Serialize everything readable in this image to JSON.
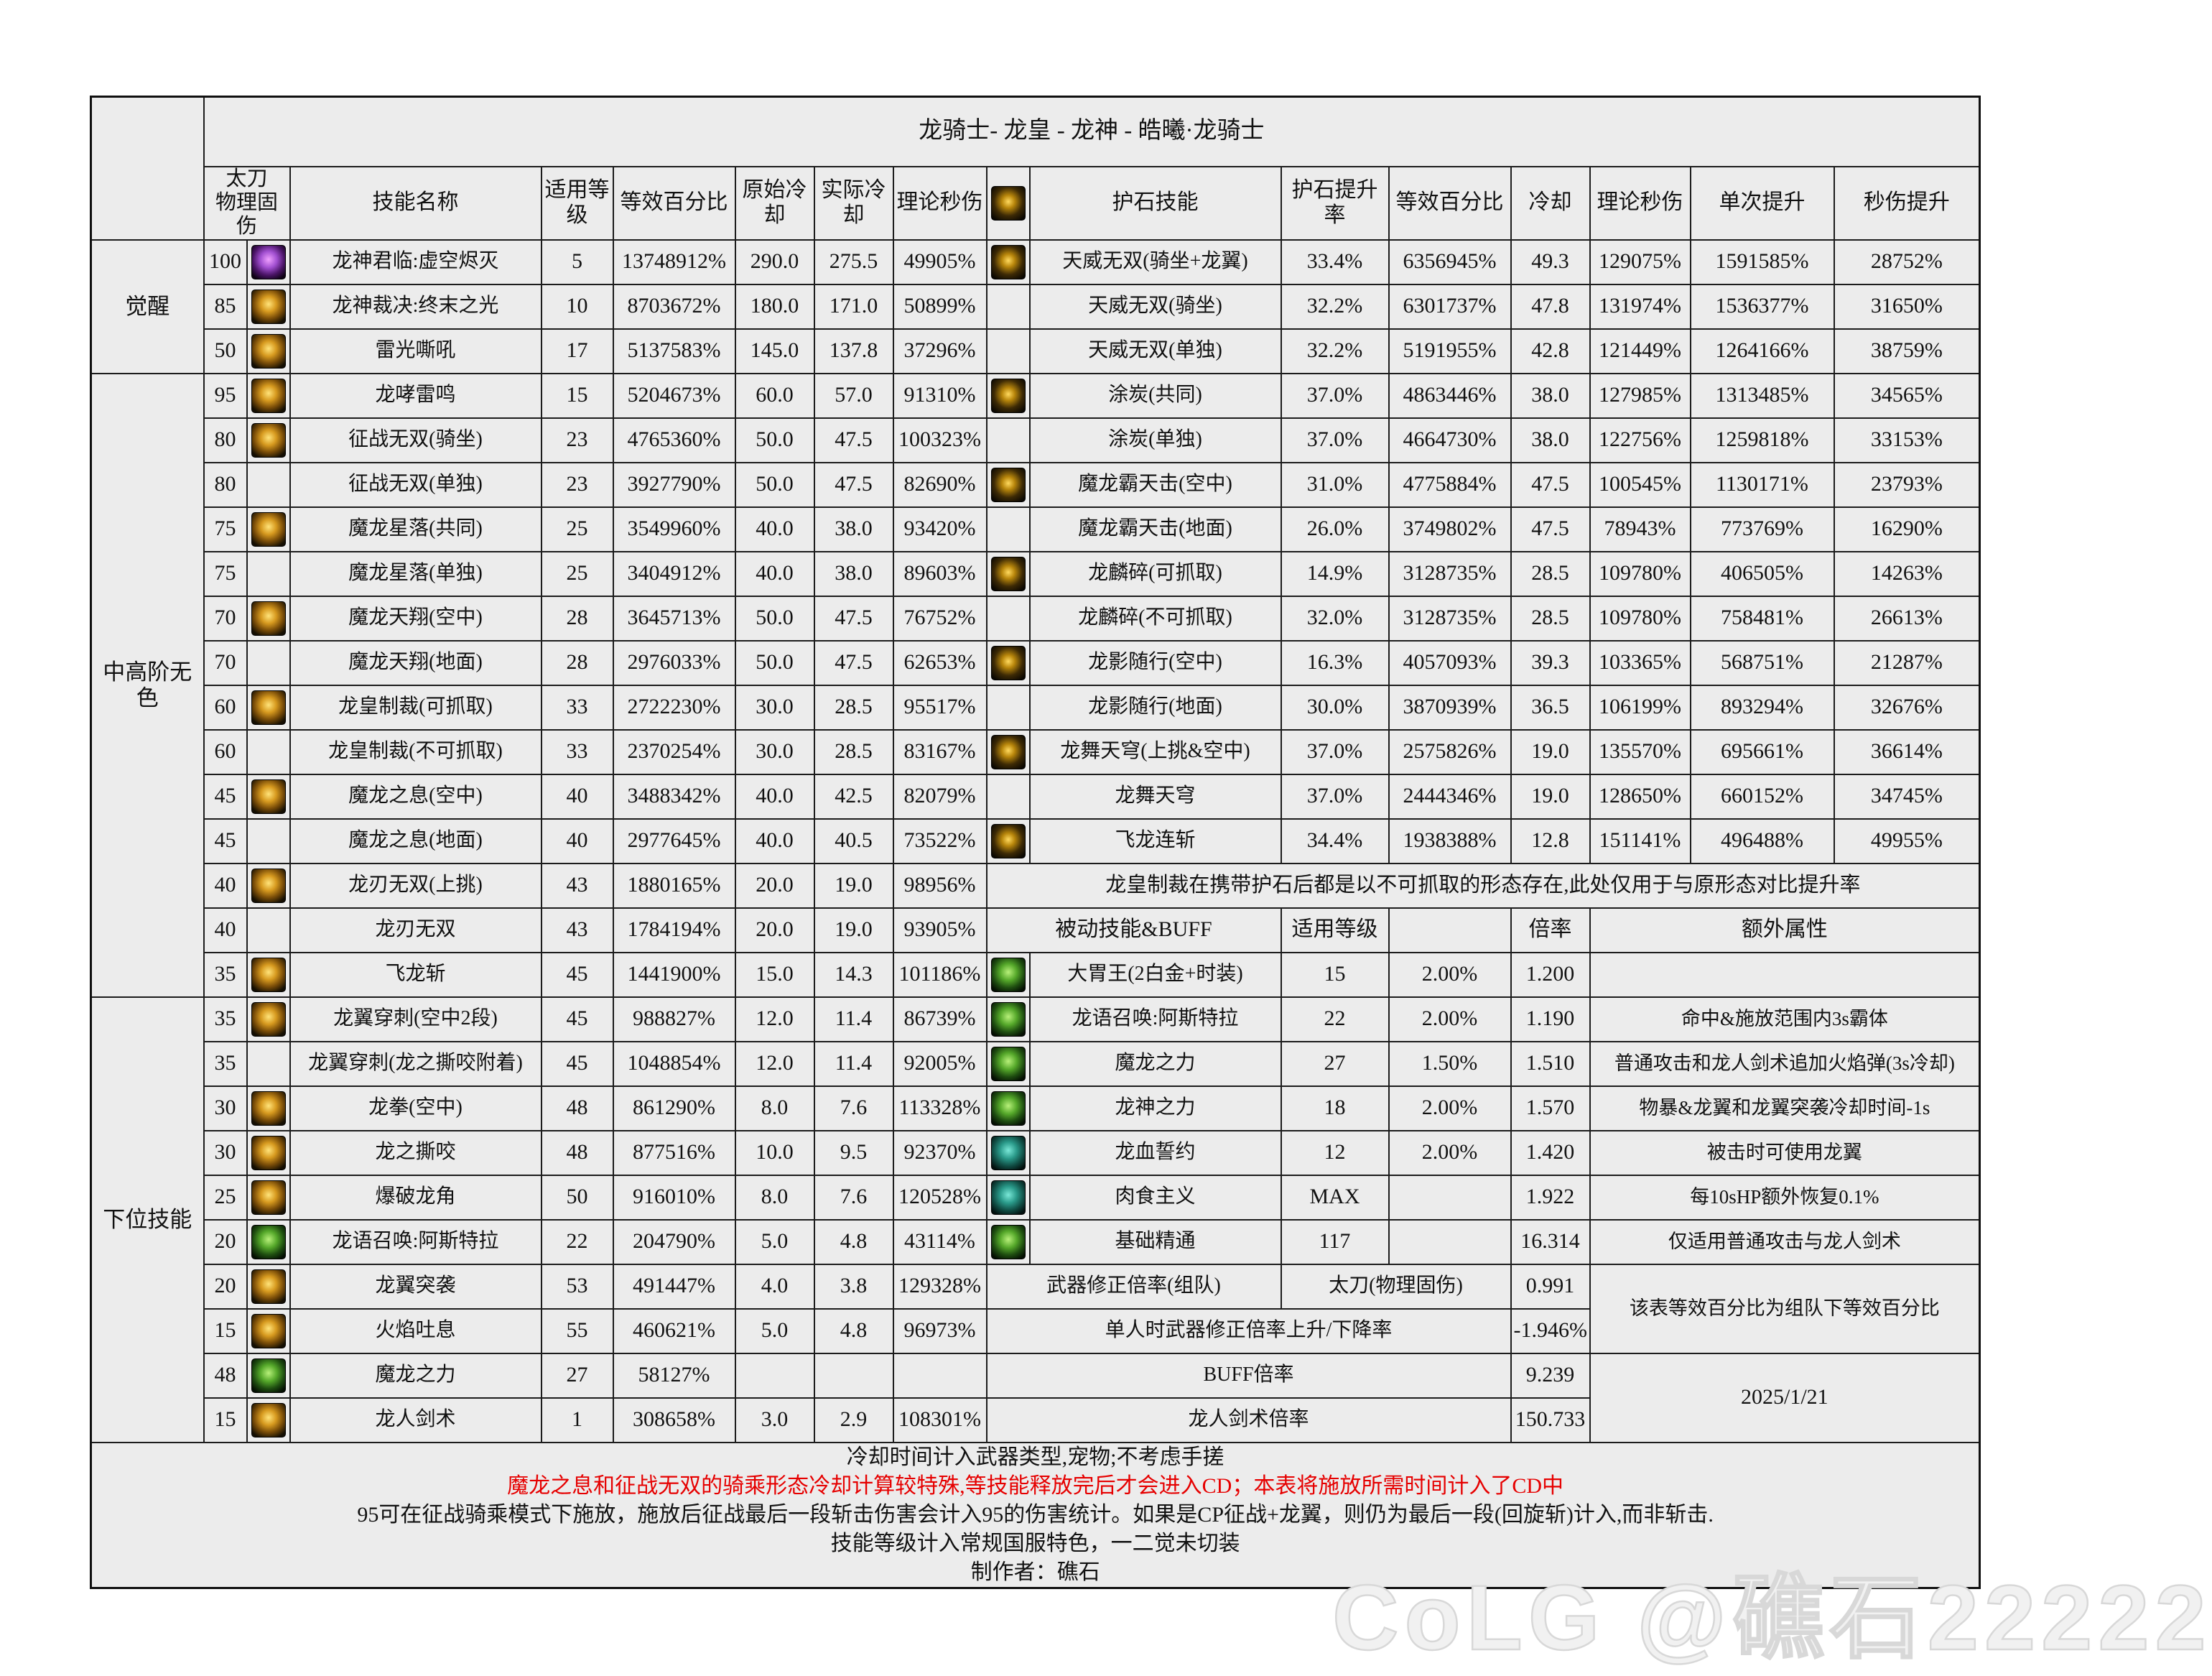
{
  "title": "龙骑士- 龙皇 - 龙神 - 皓曦·龙骑士",
  "colors": {
    "table_bg": "#ececec",
    "red_note": "#e60000",
    "watermark": "#ebebeb",
    "border": "#1c1c1c"
  },
  "corner": {
    "weapon_header": "太刀\n物理固伤"
  },
  "columns": {
    "skill_name": "技能名称",
    "use_level": "适用等级",
    "eq_pct": "等效百分比",
    "cd_orig": "原始冷却",
    "cd_real": "实际冷却",
    "dps": "理论秒伤",
    "stone_icon": "stone-rune-icon",
    "stone_skill": "护石技能",
    "stone_rate": "护石提升率",
    "eq_pct2": "等效百分比",
    "cd2": "冷却",
    "dps2": "理论秒伤",
    "single_boost": "单次提升",
    "dps_boost": "秒伤提升"
  },
  "sections": [
    {
      "label": "觉醒",
      "span": 3
    },
    {
      "label": "中高阶无色",
      "span": 14
    },
    {
      "label": "下位技能",
      "span": 10
    }
  ],
  "rows": [
    {
      "lv": "100",
      "icon": "purple",
      "name": "龙神君临:虚空烬灭",
      "use": "5",
      "eq": "13748912%",
      "cd": "290.0",
      "cdr": "275.5",
      "dps": "49905%"
    },
    {
      "lv": "85",
      "icon": "gold",
      "name": "龙神裁决:终末之光",
      "use": "10",
      "eq": "8703672%",
      "cd": "180.0",
      "cdr": "171.0",
      "dps": "50899%"
    },
    {
      "lv": "50",
      "icon": "gold",
      "name": "雷光嘶吼",
      "use": "17",
      "eq": "5137583%",
      "cd": "145.0",
      "cdr": "137.8",
      "dps": "37296%"
    },
    {
      "lv": "95",
      "icon": "gold",
      "name": "龙哮雷鸣",
      "use": "15",
      "eq": "5204673%",
      "cd": "60.0",
      "cdr": "57.0",
      "dps": "91310%"
    },
    {
      "lv": "80",
      "icon": "gold",
      "name": "征战无双(骑坐)",
      "use": "23",
      "eq": "4765360%",
      "cd": "50.0",
      "cdr": "47.5",
      "dps": "100323%"
    },
    {
      "lv": "80",
      "icon": null,
      "name": "征战无双(单独)",
      "use": "23",
      "eq": "3927790%",
      "cd": "50.0",
      "cdr": "47.5",
      "dps": "82690%"
    },
    {
      "lv": "75",
      "icon": "gold",
      "name": "魔龙星落(共同)",
      "use": "25",
      "eq": "3549960%",
      "cd": "40.0",
      "cdr": "38.0",
      "dps": "93420%"
    },
    {
      "lv": "75",
      "icon": null,
      "name": "魔龙星落(单独)",
      "use": "25",
      "eq": "3404912%",
      "cd": "40.0",
      "cdr": "38.0",
      "dps": "89603%"
    },
    {
      "lv": "70",
      "icon": "gold",
      "name": "魔龙天翔(空中)",
      "use": "28",
      "eq": "3645713%",
      "cd": "50.0",
      "cdr": "47.5",
      "dps": "76752%"
    },
    {
      "lv": "70",
      "icon": null,
      "name": "魔龙天翔(地面)",
      "use": "28",
      "eq": "2976033%",
      "cd": "50.0",
      "cdr": "47.5",
      "dps": "62653%"
    },
    {
      "lv": "60",
      "icon": "gold",
      "name": "龙皇制裁(可抓取)",
      "use": "33",
      "eq": "2722230%",
      "cd": "30.0",
      "cdr": "28.5",
      "dps": "95517%"
    },
    {
      "lv": "60",
      "icon": null,
      "name": "龙皇制裁(不可抓取)",
      "use": "33",
      "eq": "2370254%",
      "cd": "30.0",
      "cdr": "28.5",
      "dps": "83167%"
    },
    {
      "lv": "45",
      "icon": "gold",
      "name": "魔龙之息(空中)",
      "use": "40",
      "eq": "3488342%",
      "cd": "40.0",
      "cdr": "42.5",
      "dps": "82079%"
    },
    {
      "lv": "45",
      "icon": null,
      "name": "魔龙之息(地面)",
      "use": "40",
      "eq": "2977645%",
      "cd": "40.0",
      "cdr": "40.5",
      "dps": "73522%"
    },
    {
      "lv": "40",
      "icon": "gold",
      "name": "龙刃无双(上挑)",
      "use": "43",
      "eq": "1880165%",
      "cd": "20.0",
      "cdr": "19.0",
      "dps": "98956%"
    },
    {
      "lv": "40",
      "icon": null,
      "name": "龙刃无双",
      "use": "43",
      "eq": "1784194%",
      "cd": "20.0",
      "cdr": "19.0",
      "dps": "93905%"
    },
    {
      "lv": "35",
      "icon": "gold",
      "name": "飞龙斩",
      "use": "45",
      "eq": "1441900%",
      "cd": "15.0",
      "cdr": "14.3",
      "dps": "101186%"
    },
    {
      "lv": "35",
      "icon": "gold",
      "name": "龙翼穿刺(空中2段)",
      "use": "45",
      "eq": "988827%",
      "cd": "12.0",
      "cdr": "11.4",
      "dps": "86739%"
    },
    {
      "lv": "35",
      "icon": null,
      "name": "龙翼穿刺(龙之撕咬附着)",
      "use": "45",
      "eq": "1048854%",
      "cd": "12.0",
      "cdr": "11.4",
      "dps": "92005%"
    },
    {
      "lv": "30",
      "icon": "gold",
      "name": "龙拳(空中)",
      "use": "48",
      "eq": "861290%",
      "cd": "8.0",
      "cdr": "7.6",
      "dps": "113328%"
    },
    {
      "lv": "30",
      "icon": "gold",
      "name": "龙之撕咬",
      "use": "48",
      "eq": "877516%",
      "cd": "10.0",
      "cdr": "9.5",
      "dps": "92370%"
    },
    {
      "lv": "25",
      "icon": "gold",
      "name": "爆破龙角",
      "use": "50",
      "eq": "916010%",
      "cd": "8.0",
      "cdr": "7.6",
      "dps": "120528%"
    },
    {
      "lv": "20",
      "icon": "green",
      "name": "龙语召唤:阿斯特拉",
      "use": "22",
      "eq": "204790%",
      "cd": "5.0",
      "cdr": "4.8",
      "dps": "43114%"
    },
    {
      "lv": "20",
      "icon": "gold",
      "name": "龙翼突袭",
      "use": "53",
      "eq": "491447%",
      "cd": "4.0",
      "cdr": "3.8",
      "dps": "129328%"
    },
    {
      "lv": "15",
      "icon": "gold",
      "name": "火焰吐息",
      "use": "55",
      "eq": "460621%",
      "cd": "5.0",
      "cdr": "4.8",
      "dps": "96973%"
    },
    {
      "lv": "48",
      "icon": "green",
      "name": "魔龙之力",
      "use": "27",
      "eq": "58127%",
      "cd": "",
      "cdr": "",
      "dps": ""
    },
    {
      "lv": "15",
      "icon": "gold",
      "name": "龙人剑术",
      "use": "1",
      "eq": "308658%",
      "cd": "3.0",
      "cdr": "2.9",
      "dps": "108301%"
    }
  ],
  "stone_rows": [
    {
      "icon": true,
      "name": "天威无双(骑坐+龙翼)",
      "rate": "33.4%",
      "eq": "6356945%",
      "cd": "49.3",
      "dps": "129075%",
      "single": "1591585%",
      "persec": "28752%"
    },
    {
      "icon": false,
      "name": "天威无双(骑坐)",
      "rate": "32.2%",
      "eq": "6301737%",
      "cd": "47.8",
      "dps": "131974%",
      "single": "1536377%",
      "persec": "31650%"
    },
    {
      "icon": false,
      "name": "天威无双(单独)",
      "rate": "32.2%",
      "eq": "5191955%",
      "cd": "42.8",
      "dps": "121449%",
      "single": "1264166%",
      "persec": "38759%"
    },
    {
      "icon": true,
      "name": "涂炭(共同)",
      "rate": "37.0%",
      "eq": "4863446%",
      "cd": "38.0",
      "dps": "127985%",
      "single": "1313485%",
      "persec": "34565%"
    },
    {
      "icon": false,
      "name": "涂炭(单独)",
      "rate": "37.0%",
      "eq": "4664730%",
      "cd": "38.0",
      "dps": "122756%",
      "single": "1259818%",
      "persec": "33153%"
    },
    {
      "icon": true,
      "name": "魔龙霸天击(空中)",
      "rate": "31.0%",
      "eq": "4775884%",
      "cd": "47.5",
      "dps": "100545%",
      "single": "1130171%",
      "persec": "23793%"
    },
    {
      "icon": false,
      "name": "魔龙霸天击(地面)",
      "rate": "26.0%",
      "eq": "3749802%",
      "cd": "47.5",
      "dps": "78943%",
      "single": "773769%",
      "persec": "16290%"
    },
    {
      "icon": true,
      "name": "龙麟碎(可抓取)",
      "rate": "14.9%",
      "eq": "3128735%",
      "cd": "28.5",
      "dps": "109780%",
      "single": "406505%",
      "persec": "14263%"
    },
    {
      "icon": false,
      "name": "龙麟碎(不可抓取)",
      "rate": "32.0%",
      "eq": "3128735%",
      "cd": "28.5",
      "dps": "109780%",
      "single": "758481%",
      "persec": "26613%"
    },
    {
      "icon": true,
      "name": "龙影随行(空中)",
      "rate": "16.3%",
      "eq": "4057093%",
      "cd": "39.3",
      "dps": "103365%",
      "single": "568751%",
      "persec": "21287%"
    },
    {
      "icon": false,
      "name": "龙影随行(地面)",
      "rate": "30.0%",
      "eq": "3870939%",
      "cd": "36.5",
      "dps": "106199%",
      "single": "893294%",
      "persec": "32676%"
    },
    {
      "icon": true,
      "name": "龙舞天穹(上挑&空中)",
      "rate": "37.0%",
      "eq": "2575826%",
      "cd": "19.0",
      "dps": "135570%",
      "single": "695661%",
      "persec": "36614%"
    },
    {
      "icon": false,
      "name": "龙舞天穹",
      "rate": "37.0%",
      "eq": "2444346%",
      "cd": "19.0",
      "dps": "128650%",
      "single": "660152%",
      "persec": "34745%"
    },
    {
      "icon": true,
      "name": "飞龙连斩",
      "rate": "34.4%",
      "eq": "1938388%",
      "cd": "12.8",
      "dps": "151141%",
      "single": "496488%",
      "persec": "49955%"
    }
  ],
  "special": {
    "stone_note": "龙皇制裁在携带护石后都是以不可抓取的形态存在,此处仅用于与原形态对比提升率",
    "passive_header": {
      "name": "被动技能&BUFF",
      "level": "适用等级",
      "rate": "",
      "mult": "倍率",
      "extra": "额外属性"
    },
    "weapon_mod": {
      "label": "武器修正倍率(组队)",
      "value": "太刀(物理固伤)",
      "mult": "0.991"
    },
    "team_note": "该表等效百分比为组队下等效百分比",
    "solo_mod": {
      "label": "单人时武器修正倍率上升/下降率",
      "value": "-1.946%"
    },
    "buff": {
      "label": "BUFF倍率",
      "value": "9.239"
    },
    "sword": {
      "label": "龙人剑术倍率",
      "value": "150.733"
    },
    "date": "2025/1/21"
  },
  "passives": [
    {
      "icon": "green",
      "name": "大胃王(2白金+时装)",
      "lv": "15",
      "rate": "2.00%",
      "mult": "1.200",
      "extra": ""
    },
    {
      "icon": "green",
      "name": "龙语召唤:阿斯特拉",
      "lv": "22",
      "rate": "2.00%",
      "mult": "1.190",
      "extra": "命中&施放范围内3s霸体"
    },
    {
      "icon": "green",
      "name": "魔龙之力",
      "lv": "27",
      "rate": "1.50%",
      "mult": "1.510",
      "extra": "普通攻击和龙人剑术追加火焰弹(3s冷却)"
    },
    {
      "icon": "green",
      "name": "龙神之力",
      "lv": "18",
      "rate": "2.00%",
      "mult": "1.570",
      "extra": "物暴&龙翼和龙翼突袭冷却时间-1s"
    },
    {
      "icon": "teal",
      "name": "龙血誓约",
      "lv": "12",
      "rate": "2.00%",
      "mult": "1.420",
      "extra": "被击时可使用龙翼"
    },
    {
      "icon": "teal",
      "name": "肉食主义",
      "lv": "MAX",
      "rate": "",
      "mult": "1.922",
      "extra": "每10sHP额外恢复0.1%"
    },
    {
      "icon": "green",
      "name": "基础精通",
      "lv": "117",
      "rate": "",
      "mult": "16.314",
      "extra": "仅适用普通攻击与龙人剑术"
    }
  ],
  "footer": {
    "lines": [
      "冷却时间计入武器类型,宠物;不考虑手搓",
      "魔龙之息和征战无双的骑乘形态冷却计算较特殊,等技能释放完后才会进入CD；本表将施放所需时间计入了CD中",
      "95可在征战骑乘模式下施放，施放后征战最后一段斩击伤害会计入95的伤害统计。如果是CP征战+龙翼，则仍为最后一段(回旋斩)计入,而非斩击.",
      "技能等级计入常规国服特色，一二觉未切装"
    ],
    "author": "制作者：礁石"
  },
  "watermark": "CoLG @礁石22222"
}
